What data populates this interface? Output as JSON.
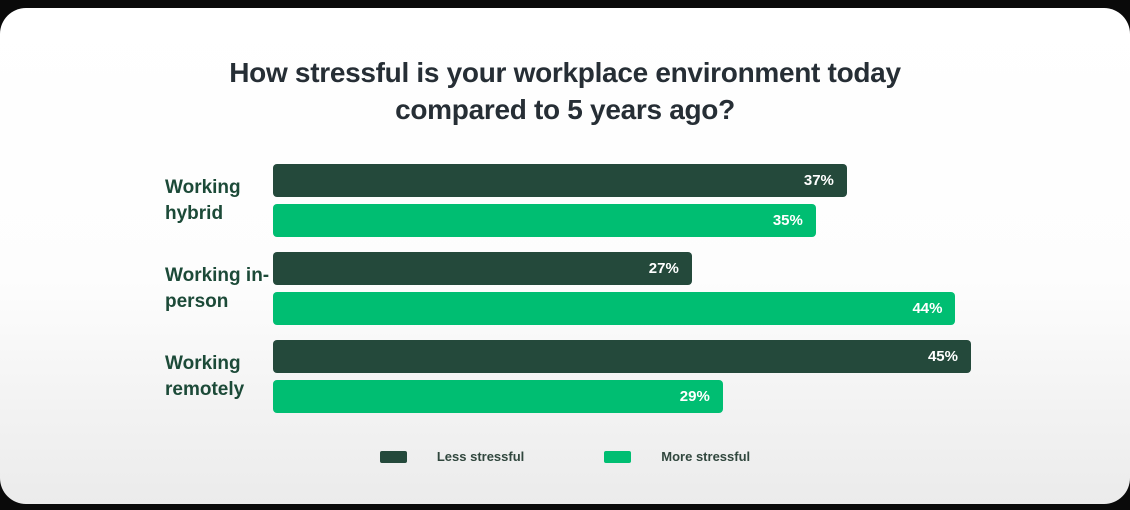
{
  "title": {
    "lines": [
      "How stressful is your workplace environment today",
      "compared to 5 years ago?"
    ]
  },
  "colors": {
    "page_background": "#0a0a0a",
    "card_background_top": "#ffffff",
    "card_background_bottom": "#ebebeb",
    "title_text": "#262e35",
    "category_label_text": "#1c4a38",
    "less_stressful": "#24493b",
    "more_stressful": "#00be72",
    "bar_value_text": "#ffffff"
  },
  "chart_data": {
    "type": "bar",
    "orientation": "horizontal",
    "title": "How stressful is your workplace environment today compared to 5 years ago?",
    "categories": [
      "Working hybrid",
      "Working in-person",
      "Working remotely"
    ],
    "series": [
      {
        "name": "Less stressful",
        "color": "#24493b",
        "values": [
          37,
          27,
          45
        ]
      },
      {
        "name": "More stressful",
        "color": "#00be72",
        "values": [
          35,
          44,
          29
        ]
      }
    ],
    "value_suffix": "%",
    "xlim": [
      0,
      45
    ],
    "value_labels": "inside-end",
    "grid": false,
    "legend_position": "bottom-center"
  },
  "legend": {
    "items": [
      {
        "label": "Less stressful",
        "color": "#24493b"
      },
      {
        "label": "More stressful",
        "color": "#00be72"
      }
    ]
  }
}
